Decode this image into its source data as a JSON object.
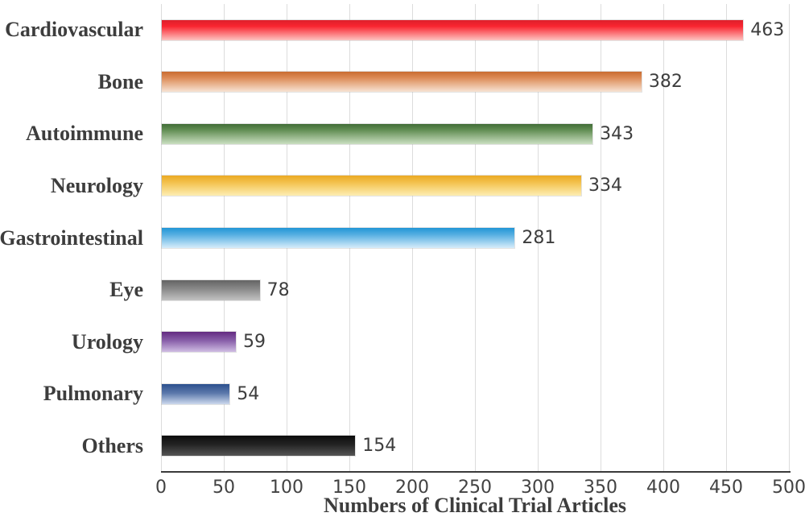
{
  "chart_data": {
    "type": "bar",
    "orientation": "horizontal",
    "title": "",
    "xlabel": "Numbers of Clinical Trial Articles",
    "ylabel": "",
    "xlim": [
      0,
      500
    ],
    "x_ticks": [
      0,
      50,
      100,
      150,
      200,
      250,
      300,
      350,
      400,
      450,
      500
    ],
    "grid": "vertical",
    "legend": "none",
    "categories": [
      "Cardiovascular",
      "Bone",
      "Autoimmune",
      "Neurology",
      "Gastrointestinal",
      "Eye",
      "Urology",
      "Pulmonary",
      "Others"
    ],
    "values": [
      463,
      382,
      343,
      334,
      281,
      78,
      59,
      54,
      154
    ],
    "value_labels": [
      "463",
      "382",
      "343",
      "334",
      "281",
      "78",
      "59",
      "54",
      "154"
    ],
    "bar_colors": [
      {
        "name": "red",
        "top": "#dc202c",
        "mid": "#f9242f",
        "mid_pos": "30%",
        "bottom": "#fdc4c1"
      },
      {
        "name": "orange",
        "top": "#c96c31",
        "mid": "#dc8a55",
        "mid_pos": "30%",
        "bottom": "#f7e3d4"
      },
      {
        "name": "green",
        "top": "#426d38",
        "mid": "#628e54",
        "mid_pos": "30%",
        "bottom": "#cadfc1"
      },
      {
        "name": "gold",
        "top": "#eba922",
        "mid": "#f3c24e",
        "mid_pos": "35%",
        "bottom": "#fdeeb3"
      },
      {
        "name": "skyblue",
        "top": "#2196d5",
        "mid": "#58b0e2",
        "mid_pos": "35%",
        "bottom": "#d7ecfa"
      },
      {
        "name": "gray",
        "top": "#646464",
        "mid": "#8b8b8b",
        "mid_pos": "45%",
        "bottom": "#c2c2c2"
      },
      {
        "name": "purple",
        "top": "#632a80",
        "mid": "#8a61ab",
        "mid_pos": "45%",
        "bottom": "#cfbde3"
      },
      {
        "name": "navy",
        "top": "#2c508e",
        "mid": "#5b78ab",
        "mid_pos": "45%",
        "bottom": "#ccd9ed"
      },
      {
        "name": "black",
        "top": "#0c0c0c",
        "mid": "#242424",
        "mid_pos": "45%",
        "bottom": "#555555"
      }
    ],
    "colors": {
      "background": "#ffffff",
      "text": "#3d3d3d",
      "tick_text": "#424242",
      "gridline": "#dcdcdc",
      "axis_line": "#3a3a3a"
    }
  }
}
